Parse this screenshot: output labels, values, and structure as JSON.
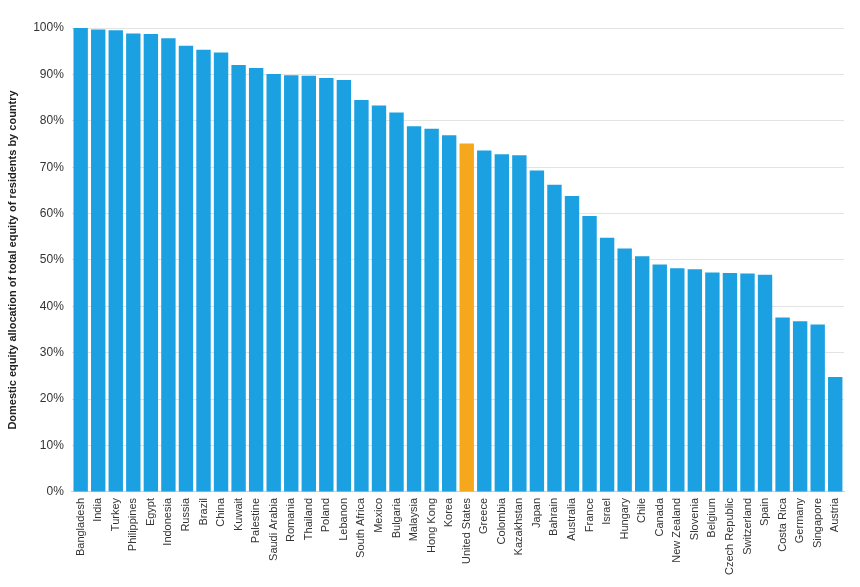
{
  "chart_data": {
    "type": "bar",
    "y_label": "Domestic equity allocation of total equity of residents by country",
    "categories": [
      "Bangladesh",
      "India",
      "Turkey",
      "Philippines",
      "Egypt",
      "Indonesia",
      "Russia",
      "Brazil",
      "China",
      "Kuwait",
      "Palestine",
      "Saudi Arabia",
      "Romania",
      "Thailand",
      "Poland",
      "Lebanon",
      "South Africa",
      "Mexico",
      "Bulgaria",
      "Malaysia",
      "Hong Kong",
      "Korea",
      "United States",
      "Greece",
      "Colombia",
      "Kazakhstan",
      "Japan",
      "Bahrain",
      "Australia",
      "France",
      "Israel",
      "Hungary",
      "Chile",
      "Canada",
      "New Zealand",
      "Slovenia",
      "Belgium",
      "Czech Republic",
      "Switzerland",
      "Spain",
      "Costa Rica",
      "Germany",
      "Singapore",
      "Austria"
    ],
    "values": [
      100,
      99.7,
      99.5,
      98.8,
      98.7,
      97.8,
      96.2,
      95.3,
      94.7,
      92,
      91.4,
      90.1,
      89.8,
      89.7,
      89.2,
      88.8,
      84.5,
      83.3,
      81.8,
      78.8,
      78.3,
      76.9,
      75.1,
      73.6,
      72.8,
      72.6,
      69.3,
      66.2,
      63.8,
      59.5,
      54.8,
      52.5,
      50.8,
      49,
      48.2,
      48,
      47.3,
      47.2,
      47.1,
      46.8,
      37.6,
      36.8,
      36.1,
      24.8
    ],
    "colors": [
      "#1ba1e2",
      "#1ba1e2",
      "#1ba1e2",
      "#1ba1e2",
      "#1ba1e2",
      "#1ba1e2",
      "#1ba1e2",
      "#1ba1e2",
      "#1ba1e2",
      "#1ba1e2",
      "#1ba1e2",
      "#1ba1e2",
      "#1ba1e2",
      "#1ba1e2",
      "#1ba1e2",
      "#1ba1e2",
      "#1ba1e2",
      "#1ba1e2",
      "#1ba1e2",
      "#1ba1e2",
      "#1ba1e2",
      "#1ba1e2",
      "#f5a81c",
      "#1ba1e2",
      "#1ba1e2",
      "#1ba1e2",
      "#1ba1e2",
      "#1ba1e2",
      "#1ba1e2",
      "#1ba1e2",
      "#1ba1e2",
      "#1ba1e2",
      "#1ba1e2",
      "#1ba1e2",
      "#1ba1e2",
      "#1ba1e2",
      "#1ba1e2",
      "#1ba1e2",
      "#1ba1e2",
      "#1ba1e2",
      "#1ba1e2",
      "#1ba1e2",
      "#1ba1e2",
      "#1ba1e2"
    ],
    "ylim": [
      0,
      100
    ],
    "yticks": [
      {
        "value": 0,
        "label": "0%"
      },
      {
        "value": 10,
        "label": "10%"
      },
      {
        "value": 20,
        "label": "20%"
      },
      {
        "value": 30,
        "label": "30%"
      },
      {
        "value": 40,
        "label": "40%"
      },
      {
        "value": 50,
        "label": "50%"
      },
      {
        "value": 60,
        "label": "60%"
      },
      {
        "value": 70,
        "label": "70%"
      },
      {
        "value": 80,
        "label": "80%"
      },
      {
        "value": 90,
        "label": "90%"
      },
      {
        "value": 100,
        "label": "100%"
      }
    ],
    "grid": true
  }
}
